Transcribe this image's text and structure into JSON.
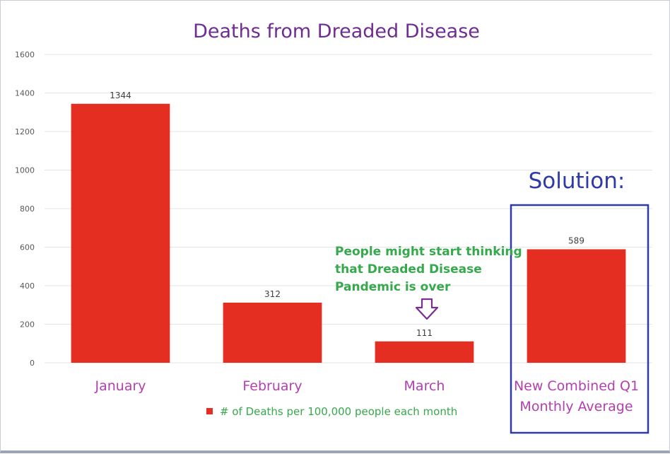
{
  "chart_data": {
    "type": "bar",
    "title": "Deaths from Dreaded Disease",
    "categories": [
      "January",
      "February",
      "March",
      "New Combined Q1 Monthly Average"
    ],
    "category_lines": [
      [
        "January"
      ],
      [
        "February"
      ],
      [
        "March"
      ],
      [
        "New Combined Q1",
        "Monthly Average"
      ]
    ],
    "series": [
      {
        "name": "# of Deaths per 100,000 people each month",
        "values": [
          1344,
          312,
          111,
          589
        ]
      }
    ],
    "ylim": [
      0,
      1600
    ],
    "yticks": [
      0,
      200,
      400,
      600,
      800,
      1000,
      1200,
      1400,
      1600
    ],
    "grid": true,
    "legend": "bottom",
    "colors": {
      "bar": "#e52e22",
      "title": "#6f2c91",
      "category": "#b23fb0",
      "legend_text": "#35a94b",
      "annotation": "#35a94b",
      "highlight": "#2e3aa8",
      "arrow": "#7b2e8f"
    },
    "annotations": {
      "solution_label": "Solution:",
      "note_lines": [
        "People might start thinking",
        "that Dreaded Disease",
        "Pandemic is over"
      ],
      "arrow_icon": "down-arrow-outline-icon",
      "highlight_box_icon": "highlight-box"
    }
  }
}
